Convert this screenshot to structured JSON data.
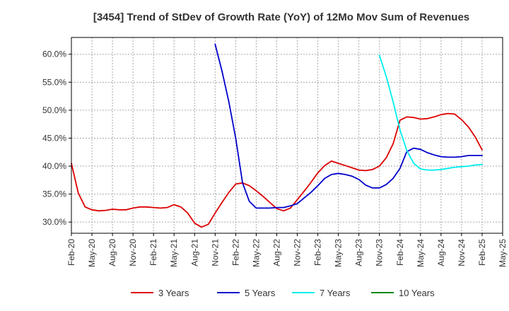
{
  "chart_data": {
    "type": "line",
    "title": "[3454]  Trend of StDev of Growth Rate (YoY) of 12Mo Mov Sum of Revenues",
    "xlabel": "",
    "ylabel": "",
    "ylim": [
      28,
      63
    ],
    "y_ticks": [
      {
        "value": 30,
        "label": "30.0%"
      },
      {
        "value": 35,
        "label": "35.0%"
      },
      {
        "value": 40,
        "label": "40.0%"
      },
      {
        "value": 45,
        "label": "45.0%"
      },
      {
        "value": 50,
        "label": "50.0%"
      },
      {
        "value": 55,
        "label": "55.0%"
      },
      {
        "value": 60,
        "label": "60.0%"
      }
    ],
    "x_ticks": [
      {
        "index": 0,
        "label": "Feb-20"
      },
      {
        "index": 3,
        "label": "May-20"
      },
      {
        "index": 6,
        "label": "Aug-20"
      },
      {
        "index": 9,
        "label": "Nov-20"
      },
      {
        "index": 12,
        "label": "Feb-21"
      },
      {
        "index": 15,
        "label": "May-21"
      },
      {
        "index": 18,
        "label": "Aug-21"
      },
      {
        "index": 21,
        "label": "Nov-21"
      },
      {
        "index": 24,
        "label": "Feb-22"
      },
      {
        "index": 27,
        "label": "May-22"
      },
      {
        "index": 30,
        "label": "Aug-22"
      },
      {
        "index": 33,
        "label": "Nov-22"
      },
      {
        "index": 36,
        "label": "Feb-23"
      },
      {
        "index": 39,
        "label": "May-23"
      },
      {
        "index": 42,
        "label": "Aug-23"
      },
      {
        "index": 45,
        "label": "Nov-23"
      },
      {
        "index": 48,
        "label": "Feb-24"
      },
      {
        "index": 51,
        "label": "May-24"
      },
      {
        "index": 54,
        "label": "Aug-24"
      },
      {
        "index": 57,
        "label": "Nov-24"
      },
      {
        "index": 60,
        "label": "Feb-25"
      },
      {
        "index": 63,
        "label": "May-25"
      }
    ],
    "x_count": 63,
    "grid": true,
    "legend_position": "bottom",
    "series": [
      {
        "name": "3 Years",
        "color": "#dd0000",
        "start": 0,
        "values": [
          40.5,
          35.2,
          32.7,
          32.2,
          32.0,
          32.1,
          32.3,
          32.2,
          32.2,
          32.5,
          32.7,
          32.7,
          32.6,
          32.5,
          32.6,
          33.1,
          32.7,
          31.6,
          29.8,
          29.1,
          29.6,
          31.6,
          33.5,
          35.3,
          36.8,
          37.0,
          36.5,
          35.6,
          34.6,
          33.5,
          32.4,
          32.0,
          32.5,
          34.0,
          35.5,
          37.1,
          38.8,
          40.1,
          40.9,
          40.5,
          40.1,
          39.7,
          39.3,
          39.2,
          39.4,
          40.0,
          41.5,
          44.0,
          48.2,
          48.8,
          48.7,
          48.4,
          48.5,
          48.8,
          49.2,
          49.4,
          49.3,
          48.3,
          47.0,
          45.2,
          42.9
        ]
      },
      {
        "name": "5 Years",
        "color": "#0000cc",
        "start": 21,
        "values": [
          61.8,
          57.0,
          51.5,
          45.0,
          37.0,
          33.7,
          32.5,
          32.5,
          32.5,
          32.6,
          32.6,
          32.9,
          33.3,
          34.3,
          35.3,
          36.5,
          37.8,
          38.5,
          38.7,
          38.5,
          38.2,
          37.6,
          36.6,
          36.1,
          36.1,
          36.7,
          37.8,
          39.6,
          42.6,
          43.2,
          43.0,
          42.4,
          42.0,
          41.7,
          41.6,
          41.6,
          41.7,
          41.9,
          41.9,
          41.9
        ]
      },
      {
        "name": "7 Years",
        "color": "#00eeee",
        "start": 45,
        "values": [
          59.8,
          56.0,
          51.5,
          46.5,
          42.8,
          40.5,
          39.5,
          39.3,
          39.3,
          39.4,
          39.6,
          39.8,
          39.9,
          40.0,
          40.2,
          40.3
        ]
      },
      {
        "name": "10 Years",
        "color": "#008800",
        "start": 0,
        "values": []
      }
    ]
  }
}
